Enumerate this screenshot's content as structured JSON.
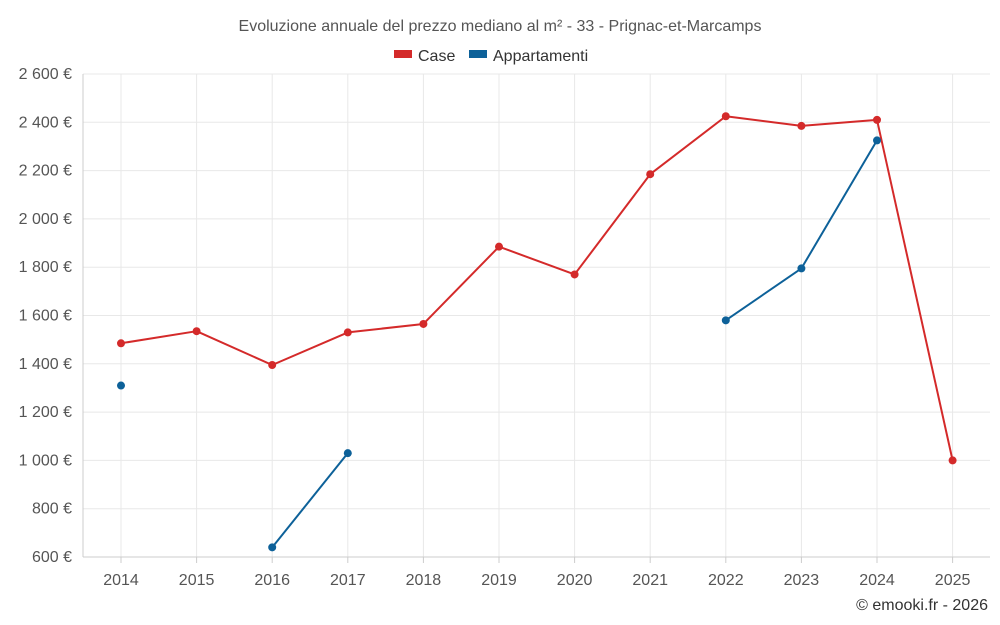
{
  "chart_data": {
    "type": "line",
    "title": "Evoluzione annuale del prezzo mediano al m² - 33 - Prignac-et-Marcamps",
    "categories": [
      "2014",
      "2015",
      "2016",
      "2017",
      "2018",
      "2019",
      "2020",
      "2021",
      "2022",
      "2023",
      "2024",
      "2025"
    ],
    "ylim": [
      600,
      2600
    ],
    "yticks": [
      600,
      800,
      1000,
      1200,
      1400,
      1600,
      1800,
      2000,
      2200,
      2400,
      2600
    ],
    "ytick_labels": [
      "600 €",
      "800 €",
      "1 000 €",
      "1 200 €",
      "1 400 €",
      "1 600 €",
      "1 800 €",
      "2 000 €",
      "2 200 €",
      "2 400 €",
      "2 600 €"
    ],
    "grid": true,
    "legend_position": "top-center",
    "series": [
      {
        "name": "Case",
        "color": "#d42a2a",
        "values": [
          1485,
          1535,
          1395,
          1530,
          1565,
          1885,
          1770,
          2185,
          2425,
          2385,
          2410,
          1000
        ]
      },
      {
        "name": "Appartamenti",
        "color": "#0d6199",
        "values": [
          1310,
          null,
          640,
          1030,
          null,
          null,
          null,
          null,
          1580,
          1795,
          2325,
          null
        ]
      }
    ],
    "credit": "© emooki.fr - 2026"
  }
}
